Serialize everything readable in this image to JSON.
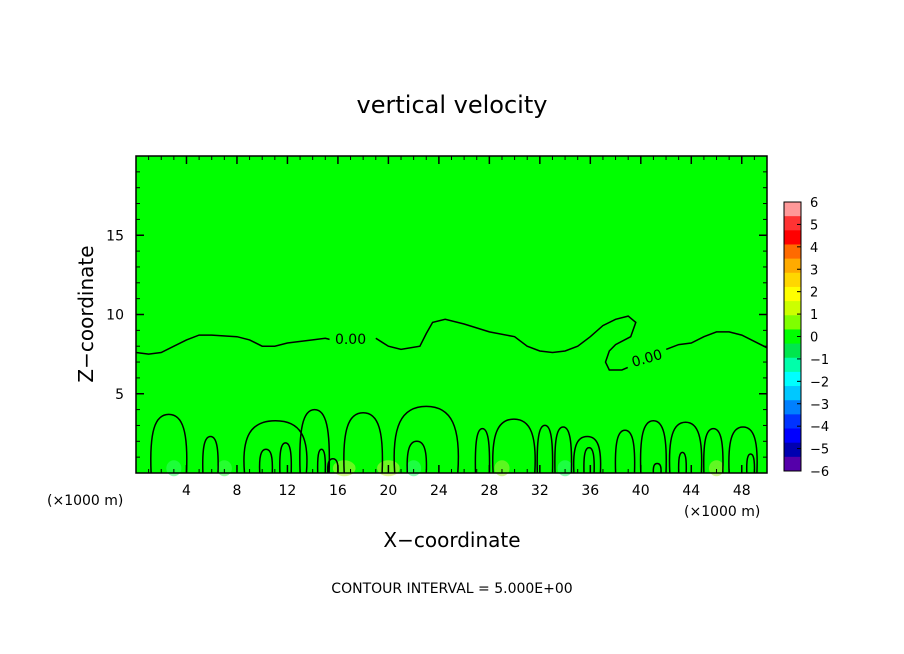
{
  "chart_data": {
    "type": "heatmap",
    "title": "vertical velocity",
    "xlabel": "X−coordinate",
    "ylabel": "Z−coordinate",
    "x_unit": "(×1000 m)",
    "x_unit_right": "(×1000 m)",
    "xlim": [
      0,
      50
    ],
    "ylim": [
      0,
      20
    ],
    "x_ticks": [
      "4",
      "8",
      "12",
      "16",
      "20",
      "24",
      "28",
      "32",
      "36",
      "40",
      "44",
      "48"
    ],
    "y_ticks": [
      "5",
      "10",
      "15"
    ],
    "colorbar": {
      "labels": [
        "6",
        "5",
        "4",
        "3",
        "2",
        "1",
        "0",
        "−1",
        "−2",
        "−3",
        "−4",
        "−5",
        "−6"
      ],
      "colors": [
        "#ff9999",
        "#ff3333",
        "#ff0000",
        "#ff6a00",
        "#ffaa00",
        "#ffd700",
        "#ffff00",
        "#ccff00",
        "#7fff00",
        "#00ff00",
        "#00e64d",
        "#00ffaa",
        "#00ffff",
        "#00c8ff",
        "#0080ff",
        "#0033ff",
        "#0000ff",
        "#0000b0",
        "#5500aa"
      ]
    },
    "field_color": "#00ff00",
    "contour_labels": [
      {
        "text": "0.00",
        "x": 17,
        "z": 8.4
      },
      {
        "text": "0.00",
        "x": 40.5,
        "z": 7.2
      }
    ],
    "footer": "CONTOUR INTERVAL = 5.000E+00"
  }
}
